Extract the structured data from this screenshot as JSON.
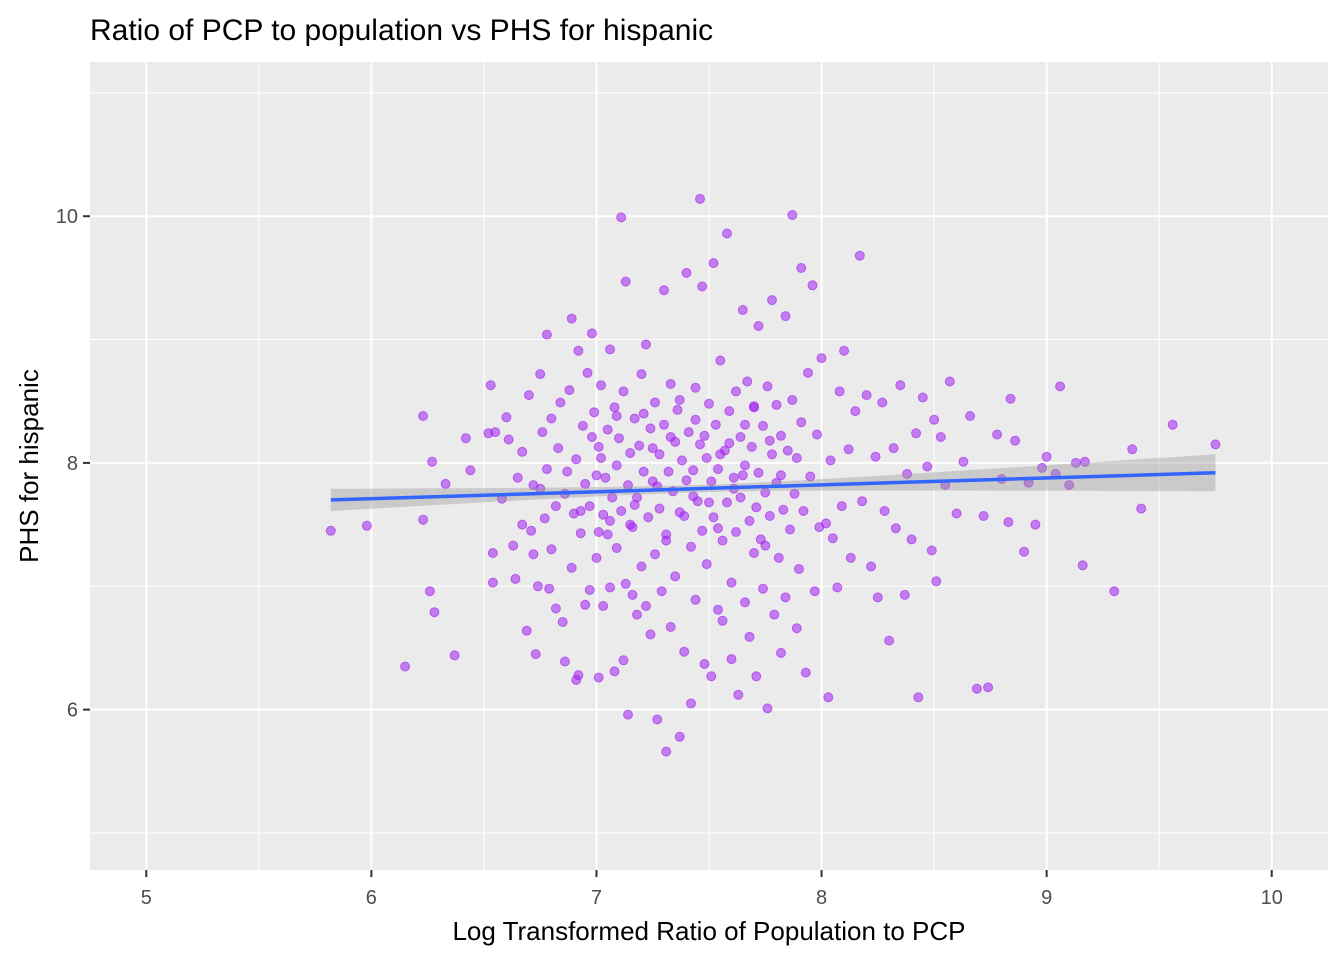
{
  "chart_data": {
    "type": "scatter",
    "title": "Ratio of PCP to population vs PHS for hispanic",
    "xlabel": "Log Transformed Ratio of Population to PCP",
    "ylabel": "PHS for hispanic",
    "xlim": [
      4.75,
      10.25
    ],
    "ylim": [
      4.7,
      11.25
    ],
    "x_ticks": [
      5,
      6,
      7,
      8,
      9,
      10
    ],
    "y_ticks": [
      6,
      8,
      10
    ],
    "x_tick_labels": [
      "5",
      "6",
      "7",
      "8",
      "9",
      "10"
    ],
    "y_tick_labels": [
      "6",
      "8",
      "10"
    ],
    "grid": true,
    "colors": {
      "panel_background": "#ebebeb",
      "grid": "#ffffff",
      "points": "#a020f0",
      "fit_line": "#3366ff",
      "confidence_band": "#999999"
    },
    "trend_line": {
      "method": "linear",
      "x_start": 5.82,
      "x_end": 9.75,
      "y_start": 7.7,
      "y_end": 7.92,
      "se_start": 0.09,
      "se_end": 0.15,
      "se_middle": 0.03,
      "x_center": 7.45
    },
    "points": [
      [
        5.82,
        7.45
      ],
      [
        5.98,
        7.49
      ],
      [
        6.15,
        6.35
      ],
      [
        6.23,
        8.38
      ],
      [
        6.23,
        7.54
      ],
      [
        6.26,
        6.96
      ],
      [
        6.27,
        8.01
      ],
      [
        6.28,
        6.79
      ],
      [
        6.33,
        7.83
      ],
      [
        6.37,
        6.44
      ],
      [
        6.42,
        8.2
      ],
      [
        6.44,
        7.94
      ],
      [
        6.52,
        8.24
      ],
      [
        6.53,
        8.63
      ],
      [
        6.54,
        7.27
      ],
      [
        6.54,
        7.03
      ],
      [
        6.55,
        8.25
      ],
      [
        6.58,
        7.71
      ],
      [
        6.6,
        8.37
      ],
      [
        6.61,
        8.19
      ],
      [
        6.63,
        7.33
      ],
      [
        6.64,
        7.06
      ],
      [
        6.65,
        7.88
      ],
      [
        6.67,
        7.5
      ],
      [
        6.67,
        8.09
      ],
      [
        6.69,
        6.64
      ],
      [
        6.7,
        8.55
      ],
      [
        6.71,
        7.45
      ],
      [
        6.72,
        7.82
      ],
      [
        6.72,
        7.26
      ],
      [
        6.73,
        6.45
      ],
      [
        6.74,
        7.0
      ],
      [
        6.75,
        7.79
      ],
      [
        6.75,
        8.72
      ],
      [
        6.76,
        8.25
      ],
      [
        6.77,
        7.55
      ],
      [
        6.78,
        7.95
      ],
      [
        6.78,
        9.04
      ],
      [
        6.79,
        6.98
      ],
      [
        6.8,
        8.36
      ],
      [
        6.8,
        7.3
      ],
      [
        6.82,
        7.65
      ],
      [
        6.82,
        6.82
      ],
      [
        6.83,
        8.12
      ],
      [
        6.84,
        8.49
      ],
      [
        6.85,
        6.71
      ],
      [
        6.86,
        6.39
      ],
      [
        6.86,
        7.75
      ],
      [
        6.87,
        7.93
      ],
      [
        6.88,
        8.59
      ],
      [
        6.89,
        7.15
      ],
      [
        6.89,
        9.17
      ],
      [
        6.9,
        7.59
      ],
      [
        6.91,
        8.03
      ],
      [
        6.91,
        6.24
      ],
      [
        6.92,
        6.28
      ],
      [
        6.92,
        8.91
      ],
      [
        6.93,
        7.43
      ],
      [
        6.94,
        8.3
      ],
      [
        6.95,
        6.85
      ],
      [
        6.95,
        7.83
      ],
      [
        6.96,
        8.73
      ],
      [
        6.97,
        7.65
      ],
      [
        6.97,
        6.97
      ],
      [
        6.98,
        9.05
      ],
      [
        6.99,
        8.41
      ],
      [
        7.0,
        7.23
      ],
      [
        7.0,
        7.9
      ],
      [
        7.01,
        8.13
      ],
      [
        7.01,
        6.26
      ],
      [
        7.02,
        8.63
      ],
      [
        7.03,
        7.58
      ],
      [
        7.03,
        6.84
      ],
      [
        7.04,
        7.88
      ],
      [
        7.05,
        8.27
      ],
      [
        7.05,
        7.42
      ],
      [
        7.06,
        8.92
      ],
      [
        7.06,
        6.99
      ],
      [
        7.07,
        7.72
      ],
      [
        7.08,
        8.45
      ],
      [
        7.08,
        6.31
      ],
      [
        7.09,
        7.98
      ],
      [
        7.09,
        7.31
      ],
      [
        7.1,
        8.2
      ],
      [
        7.11,
        9.99
      ],
      [
        7.11,
        7.61
      ],
      [
        7.12,
        8.58
      ],
      [
        7.12,
        6.4
      ],
      [
        7.13,
        7.02
      ],
      [
        7.13,
        9.47
      ],
      [
        7.14,
        7.82
      ],
      [
        7.14,
        5.96
      ],
      [
        7.15,
        8.08
      ],
      [
        7.16,
        6.93
      ],
      [
        7.16,
        7.48
      ],
      [
        7.17,
        8.36
      ],
      [
        7.18,
        7.72
      ],
      [
        7.18,
        6.77
      ],
      [
        7.19,
        8.14
      ],
      [
        7.2,
        7.16
      ],
      [
        7.2,
        8.72
      ],
      [
        7.21,
        7.93
      ],
      [
        7.22,
        6.84
      ],
      [
        7.22,
        8.96
      ],
      [
        7.23,
        7.56
      ],
      [
        7.24,
        8.28
      ],
      [
        7.24,
        6.61
      ],
      [
        7.25,
        7.85
      ],
      [
        7.26,
        8.49
      ],
      [
        7.26,
        7.26
      ],
      [
        7.27,
        5.92
      ],
      [
        7.28,
        8.07
      ],
      [
        7.28,
        7.63
      ],
      [
        7.29,
        6.96
      ],
      [
        7.3,
        9.4
      ],
      [
        7.3,
        8.31
      ],
      [
        7.31,
        5.66
      ],
      [
        7.31,
        7.42
      ],
      [
        7.32,
        7.93
      ],
      [
        7.33,
        8.64
      ],
      [
        7.33,
        6.67
      ],
      [
        7.34,
        7.77
      ],
      [
        7.35,
        8.17
      ],
      [
        7.35,
        7.08
      ],
      [
        7.36,
        8.43
      ],
      [
        7.37,
        5.78
      ],
      [
        7.37,
        7.6
      ],
      [
        7.38,
        8.02
      ],
      [
        7.39,
        6.47
      ],
      [
        7.4,
        7.86
      ],
      [
        7.4,
        9.54
      ],
      [
        7.41,
        8.25
      ],
      [
        7.42,
        7.32
      ],
      [
        7.42,
        6.05
      ],
      [
        7.43,
        7.94
      ],
      [
        7.44,
        8.61
      ],
      [
        7.44,
        6.89
      ],
      [
        7.45,
        7.69
      ],
      [
        7.46,
        10.14
      ],
      [
        7.46,
        8.15
      ],
      [
        7.47,
        7.45
      ],
      [
        7.47,
        9.43
      ],
      [
        7.48,
        6.37
      ],
      [
        7.49,
        8.04
      ],
      [
        7.49,
        7.18
      ],
      [
        7.5,
        8.48
      ],
      [
        7.51,
        7.85
      ],
      [
        7.51,
        6.27
      ],
      [
        7.52,
        9.62
      ],
      [
        7.52,
        7.56
      ],
      [
        7.53,
        8.31
      ],
      [
        7.54,
        6.81
      ],
      [
        7.54,
        7.95
      ],
      [
        7.55,
        8.83
      ],
      [
        7.56,
        7.37
      ],
      [
        7.56,
        6.72
      ],
      [
        7.57,
        8.1
      ],
      [
        7.58,
        9.86
      ],
      [
        7.58,
        7.68
      ],
      [
        7.59,
        8.42
      ],
      [
        7.6,
        7.03
      ],
      [
        7.6,
        6.41
      ],
      [
        7.61,
        7.88
      ],
      [
        7.62,
        8.58
      ],
      [
        7.62,
        7.44
      ],
      [
        7.63,
        6.12
      ],
      [
        7.64,
        8.21
      ],
      [
        7.64,
        7.72
      ],
      [
        7.65,
        9.24
      ],
      [
        7.66,
        6.87
      ],
      [
        7.66,
        7.98
      ],
      [
        7.67,
        8.66
      ],
      [
        7.68,
        7.53
      ],
      [
        7.68,
        6.59
      ],
      [
        7.69,
        8.13
      ],
      [
        7.7,
        7.27
      ],
      [
        7.7,
        8.46
      ],
      [
        7.71,
        6.27
      ],
      [
        7.72,
        7.92
      ],
      [
        7.72,
        9.11
      ],
      [
        7.73,
        7.38
      ],
      [
        7.74,
        6.98
      ],
      [
        7.74,
        8.3
      ],
      [
        7.75,
        7.76
      ],
      [
        7.76,
        6.01
      ],
      [
        7.76,
        8.62
      ],
      [
        7.77,
        7.57
      ],
      [
        7.78,
        9.32
      ],
      [
        7.78,
        8.07
      ],
      [
        7.79,
        6.77
      ],
      [
        7.8,
        7.84
      ],
      [
        7.8,
        8.47
      ],
      [
        7.81,
        7.23
      ],
      [
        7.82,
        6.46
      ],
      [
        7.82,
        8.22
      ],
      [
        7.83,
        7.62
      ],
      [
        7.84,
        9.19
      ],
      [
        7.84,
        6.91
      ],
      [
        7.85,
        8.1
      ],
      [
        7.86,
        7.46
      ],
      [
        7.87,
        10.01
      ],
      [
        7.87,
        8.51
      ],
      [
        7.88,
        7.75
      ],
      [
        7.89,
        6.66
      ],
      [
        7.89,
        8.04
      ],
      [
        7.9,
        7.14
      ],
      [
        7.91,
        9.58
      ],
      [
        7.91,
        8.33
      ],
      [
        7.92,
        7.61
      ],
      [
        7.93,
        6.3
      ],
      [
        7.94,
        8.73
      ],
      [
        7.95,
        7.89
      ],
      [
        7.96,
        9.44
      ],
      [
        7.97,
        6.96
      ],
      [
        7.98,
        8.23
      ],
      [
        7.99,
        7.48
      ],
      [
        8.0,
        8.85
      ],
      [
        8.02,
        7.51
      ],
      [
        8.03,
        6.1
      ],
      [
        8.04,
        8.02
      ],
      [
        8.05,
        7.39
      ],
      [
        8.07,
        6.99
      ],
      [
        8.08,
        8.58
      ],
      [
        8.09,
        7.65
      ],
      [
        8.1,
        8.91
      ],
      [
        8.12,
        8.11
      ],
      [
        8.13,
        7.23
      ],
      [
        8.15,
        8.42
      ],
      [
        8.17,
        9.68
      ],
      [
        8.18,
        7.69
      ],
      [
        8.2,
        8.55
      ],
      [
        8.22,
        7.16
      ],
      [
        8.24,
        8.05
      ],
      [
        8.25,
        6.91
      ],
      [
        8.27,
        8.49
      ],
      [
        8.28,
        7.61
      ],
      [
        8.3,
        6.56
      ],
      [
        8.32,
        8.12
      ],
      [
        8.33,
        7.47
      ],
      [
        8.35,
        8.63
      ],
      [
        8.37,
        6.93
      ],
      [
        8.38,
        7.91
      ],
      [
        8.4,
        7.38
      ],
      [
        8.42,
        8.24
      ],
      [
        8.43,
        6.1
      ],
      [
        8.45,
        8.53
      ],
      [
        8.47,
        7.97
      ],
      [
        8.49,
        7.29
      ],
      [
        8.5,
        8.35
      ],
      [
        8.51,
        7.04
      ],
      [
        8.53,
        8.21
      ],
      [
        8.55,
        7.82
      ],
      [
        8.57,
        8.66
      ],
      [
        8.6,
        7.59
      ],
      [
        8.63,
        8.01
      ],
      [
        8.66,
        8.38
      ],
      [
        8.69,
        6.17
      ],
      [
        8.72,
        7.57
      ],
      [
        8.74,
        6.18
      ],
      [
        8.78,
        8.23
      ],
      [
        8.8,
        7.87
      ],
      [
        8.83,
        7.52
      ],
      [
        8.84,
        8.52
      ],
      [
        8.86,
        8.18
      ],
      [
        8.9,
        7.28
      ],
      [
        8.92,
        7.84
      ],
      [
        8.95,
        7.5
      ],
      [
        8.98,
        7.96
      ],
      [
        9.0,
        8.05
      ],
      [
        9.04,
        7.91
      ],
      [
        9.06,
        8.62
      ],
      [
        9.1,
        7.82
      ],
      [
        9.13,
        8.0
      ],
      [
        9.16,
        7.17
      ],
      [
        9.17,
        8.01
      ],
      [
        9.3,
        6.96
      ],
      [
        9.38,
        8.11
      ],
      [
        9.42,
        7.63
      ],
      [
        9.56,
        8.31
      ],
      [
        9.75,
        8.15
      ],
      [
        6.93,
        7.61
      ],
      [
        7.02,
        8.04
      ],
      [
        7.15,
        7.5
      ],
      [
        7.21,
        8.4
      ],
      [
        7.27,
        7.81
      ],
      [
        7.33,
        8.21
      ],
      [
        7.39,
        7.57
      ],
      [
        7.44,
        8.35
      ],
      [
        7.5,
        7.68
      ],
      [
        7.55,
        8.07
      ],
      [
        7.61,
        7.79
      ],
      [
        7.66,
        8.31
      ],
      [
        7.71,
        7.64
      ],
      [
        7.77,
        8.18
      ],
      [
        7.82,
        7.9
      ],
      [
        7.01,
        7.44
      ],
      [
        7.09,
        8.38
      ],
      [
        7.17,
        7.66
      ],
      [
        7.25,
        8.12
      ],
      [
        7.31,
        7.37
      ],
      [
        7.37,
        8.51
      ],
      [
        7.43,
        7.73
      ],
      [
        7.48,
        8.22
      ],
      [
        7.54,
        7.47
      ],
      [
        7.59,
        8.16
      ],
      [
        7.65,
        7.9
      ],
      [
        7.7,
        8.45
      ],
      [
        7.75,
        7.33
      ],
      [
        6.98,
        8.21
      ],
      [
        7.06,
        7.53
      ]
    ]
  }
}
